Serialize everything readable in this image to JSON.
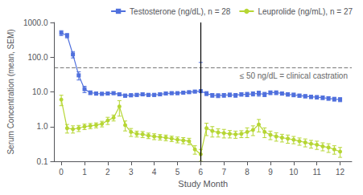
{
  "chart_data": {
    "type": "line",
    "xlabel": "Study Month",
    "ylabel": "Serum Concentration (mean, SEM)",
    "log": "y",
    "grid": false,
    "legend": "upper right",
    "xlim": [
      -0.3,
      12.5
    ],
    "ylim": [
      0.1,
      1000.0
    ],
    "xticks": [
      0,
      1,
      2,
      3,
      4,
      5,
      6,
      7,
      8,
      9,
      10,
      11,
      12
    ],
    "yticks": [
      {
        "value": 0.1,
        "label": "0.1"
      },
      {
        "value": 1.0,
        "label": "1.0"
      },
      {
        "value": 10.0,
        "label": "10.0"
      },
      {
        "value": 100.0,
        "label": "100.0"
      },
      {
        "value": 1000.0,
        "label": "1000.0"
      }
    ],
    "x": [
      0,
      0.25,
      0.5,
      0.75,
      1.0,
      1.25,
      1.5,
      1.75,
      2.0,
      2.25,
      2.5,
      2.75,
      3.0,
      3.25,
      3.5,
      3.75,
      4.0,
      4.25,
      4.5,
      4.75,
      5.0,
      5.25,
      5.5,
      5.75,
      6.0,
      6.25,
      6.5,
      6.75,
      7.0,
      7.25,
      7.5,
      7.75,
      8.0,
      8.25,
      8.5,
      8.75,
      9.0,
      9.25,
      9.5,
      9.75,
      10.0,
      10.25,
      10.5,
      10.75,
      11.0,
      11.25,
      11.5,
      11.75,
      12.0
    ],
    "series": [
      {
        "name": "Testosterone (ng/dL), n = 28",
        "marker": "square",
        "values": [
          500,
          420,
          120,
          30,
          12,
          9.5,
          9,
          8.8,
          9,
          9.2,
          8.5,
          7.8,
          8.0,
          8.2,
          8.5,
          8.2,
          8.2,
          8.5,
          9.0,
          9.2,
          9.2,
          9.5,
          9.8,
          10.2,
          10.5,
          9.0,
          8.0,
          7.8,
          8.0,
          8.2,
          8.0,
          8.5,
          8.5,
          8.8,
          9.0,
          8.5,
          9.5,
          9.5,
          9.0,
          8.5,
          8.2,
          7.8,
          7.5,
          7.2,
          7.0,
          6.8,
          6.5,
          6.2,
          6.0
        ],
        "yerr": [
          80,
          60,
          25,
          8,
          2.5,
          1.2,
          1.0,
          0.8,
          0.8,
          0.8,
          0.8,
          0.8,
          0.8,
          0.8,
          0.8,
          0.8,
          0.8,
          0.8,
          0.8,
          0.8,
          0.8,
          0.8,
          0.8,
          0.8,
          60,
          1.2,
          1.0,
          1.0,
          1.0,
          1.0,
          1.0,
          1.0,
          1.2,
          1.2,
          1.5,
          1.2,
          1.2,
          1.2,
          1.0,
          1.0,
          1.0,
          0.8,
          0.8,
          0.8,
          0.8,
          0.8,
          0.8,
          0.8,
          0.8
        ]
      },
      {
        "name": "Leuprolide (ng/mL), n = 27",
        "marker": "circle",
        "values": [
          6.0,
          0.9,
          0.85,
          0.9,
          1.0,
          1.05,
          1.1,
          1.2,
          1.5,
          1.8,
          3.8,
          1.1,
          0.7,
          0.62,
          0.6,
          0.55,
          0.52,
          0.5,
          0.48,
          0.45,
          0.42,
          0.4,
          0.38,
          0.22,
          0.16,
          0.9,
          0.75,
          0.68,
          0.65,
          0.62,
          0.6,
          0.62,
          0.7,
          0.8,
          1.15,
          0.7,
          0.58,
          0.52,
          0.48,
          0.45,
          0.42,
          0.38,
          0.35,
          0.32,
          0.3,
          0.27,
          0.25,
          0.22,
          0.19
        ],
        "yerr": [
          2.0,
          0.25,
          0.2,
          0.18,
          0.18,
          0.18,
          0.18,
          0.22,
          0.35,
          0.35,
          1.8,
          0.35,
          0.18,
          0.12,
          0.12,
          0.1,
          0.1,
          0.09,
          0.09,
          0.08,
          0.08,
          0.08,
          0.08,
          0.06,
          0.06,
          0.35,
          0.25,
          0.18,
          0.18,
          0.15,
          0.14,
          0.14,
          0.22,
          0.25,
          0.45,
          0.22,
          0.16,
          0.14,
          0.12,
          0.12,
          0.1,
          0.09,
          0.09,
          0.08,
          0.08,
          0.07,
          0.07,
          0.06,
          0.06
        ]
      }
    ],
    "reference_lines": [
      {
        "axis": "y",
        "value": 50,
        "label": "≤ 50 ng/dL = clinical castration",
        "line_style": "dashed"
      },
      {
        "axis": "x",
        "value": 6,
        "line_style": "solid"
      }
    ]
  }
}
